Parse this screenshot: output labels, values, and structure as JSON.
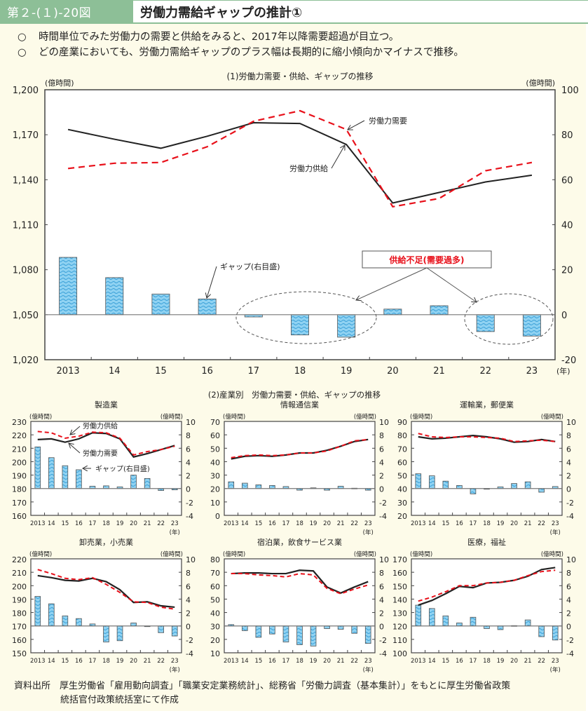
{
  "header": {
    "figure_number": "第２-(１)-20図",
    "title": "労働力需給ギャップの推計①"
  },
  "bullets": [
    {
      "mark": "○",
      "text": "時間単位でみた労働力の需要と供給をみると、2017年以降需要超過が目立つ。"
    },
    {
      "mark": "○",
      "text": "どの産業においても、労働力需給ギャップのプラス幅は長期的に縮小傾向かマイナスで推移。"
    }
  ],
  "source": {
    "line1": "資料出所　厚生労働省「雇用動向調査」「職業安定業務統計」、総務省「労働力調査（基本集計）」をもとに厚生労働省政策",
    "line2": "統括官付政策統括室にて作成"
  },
  "colors": {
    "header_green": "#8dbf97",
    "panel_bg": "#fdfbe9",
    "supply_line": "#222222",
    "demand_line": "#e8101a",
    "gap_bar": "#7cc6ea",
    "annotation_red": "#e8101a"
  },
  "chart_data": [
    {
      "id": "main",
      "type": "bar+line",
      "title": "(1)労働力需要・供給、ギャップの推移",
      "categories": [
        "2013",
        "14",
        "15",
        "16",
        "17",
        "18",
        "19",
        "20",
        "21",
        "22",
        "23"
      ],
      "x_unit": "(年)",
      "ylabel_left": "(億時間)",
      "ylabel_right": "(億時間)",
      "ylim_left": [
        1020,
        1200
      ],
      "yticks_left": [
        1020,
        1050,
        1080,
        1110,
        1140,
        1170,
        1200
      ],
      "ytick_labels_left": [
        "1,020",
        "1,050",
        "1,080",
        "1,110",
        "1,140",
        "1,170",
        "1,200"
      ],
      "ylim_right": [
        -20,
        100
      ],
      "yticks_right": [
        -20,
        0,
        20,
        40,
        60,
        80,
        100
      ],
      "series": [
        {
          "name": "労働力供給",
          "kind": "line",
          "axis": "left",
          "style": "solid",
          "values": [
            1173.5,
            1167,
            1161,
            1169,
            1178,
            1177.5,
            1163.5,
            1124.5,
            1131.5,
            1138.5,
            1143
          ]
        },
        {
          "name": "労働力需要",
          "kind": "line",
          "axis": "left",
          "style": "dashed",
          "values": [
            1147.5,
            1151,
            1151.5,
            1162,
            1179,
            1186,
            1173.5,
            1122,
            1127.5,
            1146,
            1151.5
          ]
        },
        {
          "name": "ギャップ(右目盛)",
          "kind": "bar",
          "axis": "right",
          "values": [
            25.5,
            16.5,
            9.2,
            7,
            -1,
            -9,
            -10,
            2.5,
            4,
            -7.5,
            -9.5
          ]
        }
      ],
      "annotations": {
        "supply_label": "労働力供給",
        "demand_label": "労働力需要",
        "gap_label": "ギャップ(右目盛)",
        "shortage_box": "供給不足(需要過多)"
      }
    },
    {
      "id": "industry-section",
      "title": "(2)産業別　労働力需要・供給、ギャップの推移",
      "categories": [
        "2013",
        "14",
        "15",
        "16",
        "17",
        "18",
        "19",
        "20",
        "21",
        "22",
        "23"
      ],
      "x_unit": "(年)",
      "unit_label": "(億時間)",
      "ylim_right": [
        -4,
        10
      ],
      "yticks_right": [
        -4,
        -2,
        0,
        2,
        4,
        6,
        8,
        10
      ],
      "panels": [
        {
          "title": "製造業",
          "ylim_left": [
            160,
            230
          ],
          "yticks_left": [
            160,
            170,
            180,
            190,
            200,
            210,
            220,
            230
          ],
          "supply": [
            216.5,
            217,
            214.5,
            217,
            221.5,
            221,
            217,
            203.5,
            206,
            209,
            212
          ],
          "demand": [
            222.5,
            221.5,
            217.5,
            219,
            222,
            221.5,
            217.5,
            205,
            207.5,
            209,
            211.5
          ],
          "gap": [
            6.2,
            4.6,
            3.4,
            2.8,
            0.35,
            0.4,
            0.25,
            2.0,
            1.5,
            -0.3,
            -0.2
          ],
          "labels": {
            "supply": "労働力供給",
            "demand": "労働力需要",
            "gap": "ギャップ(右目盛)"
          }
        },
        {
          "title": "情報通信業",
          "ylim_left": [
            0,
            70
          ],
          "yticks_left": [
            0,
            10,
            20,
            30,
            40,
            50,
            60,
            70
          ],
          "supply": [
            42,
            44,
            44.5,
            44,
            45,
            46.5,
            46.5,
            48.5,
            51.5,
            55,
            56.5
          ],
          "demand": [
            43,
            44.5,
            45,
            44.5,
            45,
            46.5,
            46.5,
            48,
            51.5,
            55.5,
            56.5
          ],
          "gap": [
            1.0,
            0.8,
            0.55,
            0.45,
            0.3,
            -0.25,
            0.1,
            -0.25,
            0.35,
            0.05,
            -0.25
          ]
        },
        {
          "title": "運輸業，郵便業",
          "ylim_left": [
            20,
            90
          ],
          "yticks_left": [
            20,
            30,
            40,
            50,
            60,
            70,
            80,
            90
          ],
          "supply": [
            78.5,
            77,
            77.5,
            78.5,
            79.5,
            78.5,
            77,
            74.5,
            75,
            76.5,
            75
          ],
          "demand": [
            81,
            78.5,
            78,
            78.5,
            78.5,
            78,
            77.5,
            75,
            75.5,
            76,
            75
          ],
          "gap": [
            2.2,
            1.9,
            1.1,
            0.45,
            -0.8,
            -0.05,
            0.25,
            0.75,
            1.0,
            -0.55,
            0.3
          ]
        },
        {
          "title": "卸売業，小売業",
          "ylim_left": [
            150,
            220
          ],
          "yticks_left": [
            150,
            160,
            170,
            180,
            190,
            200,
            210,
            220
          ],
          "supply": [
            207.5,
            206,
            204,
            203.5,
            205.5,
            203,
            197,
            187.5,
            188,
            185,
            184
          ],
          "demand": [
            212,
            209,
            205.5,
            204.5,
            206,
            201,
            195,
            188,
            187.5,
            184,
            182.5
          ],
          "gap": [
            4.4,
            3.3,
            1.5,
            1.1,
            0.3,
            -2.4,
            -2.2,
            0.45,
            -0.05,
            -1.0,
            -1.5
          ]
        },
        {
          "title": "宿泊業，飲食サービス業",
          "ylim_left": [
            10,
            80
          ],
          "yticks_left": [
            10,
            20,
            30,
            40,
            50,
            60,
            70,
            80
          ],
          "supply": [
            69,
            69.5,
            69.5,
            69,
            69,
            71.5,
            71,
            59,
            54.5,
            59,
            63
          ],
          "demand": [
            69,
            69,
            68,
            67.5,
            66.5,
            69,
            68,
            58,
            54,
            57.5,
            60.5
          ],
          "gap": [
            0.2,
            -0.7,
            -1.7,
            -1.2,
            -2.4,
            -2.8,
            -3.0,
            -0.4,
            -0.5,
            -1.1,
            -2.6
          ]
        },
        {
          "title": "医療，福祉",
          "ylim_left": [
            100,
            170
          ],
          "yticks_left": [
            100,
            110,
            120,
            130,
            140,
            150,
            160,
            170
          ],
          "supply": [
            135.5,
            139,
            144,
            149.5,
            148.5,
            152,
            152.5,
            154,
            157,
            162,
            163.5
          ],
          "demand": [
            138.5,
            141.5,
            145.5,
            150,
            150,
            152,
            152.5,
            154,
            157.5,
            160.5,
            161.5
          ],
          "gap": [
            3.1,
            2.6,
            1.5,
            0.45,
            1.3,
            -0.4,
            -0.55,
            0.05,
            0.9,
            -1.6,
            -2.1
          ]
        }
      ]
    }
  ]
}
